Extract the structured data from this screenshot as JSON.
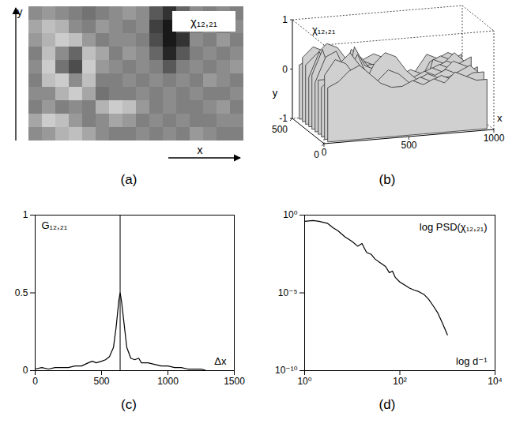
{
  "chart_data": [
    {
      "type": "heatmap",
      "caption": "(a)",
      "zlabel": "χ₁₂,₂₁",
      "xlabel": "x",
      "ylabel": "y",
      "tick_labels": false,
      "clim": [
        -1,
        1
      ],
      "cells": [
        [
          0.1,
          0.2,
          0.1,
          0.0,
          -0.1,
          0.0,
          0.1,
          0.2,
          0.1,
          -0.3,
          -0.6,
          -0.2,
          0.1,
          0.0,
          0.1,
          0.0
        ],
        [
          0.3,
          0.5,
          0.4,
          0.1,
          0.0,
          0.2,
          0.1,
          0.0,
          0.1,
          -0.5,
          -0.8,
          -0.4,
          0.0,
          0.1,
          0.0,
          0.1
        ],
        [
          0.2,
          0.4,
          0.6,
          0.5,
          0.2,
          0.0,
          0.1,
          0.1,
          0.0,
          -0.4,
          -0.8,
          -0.6,
          0.1,
          0.0,
          0.2,
          0.0
        ],
        [
          0.0,
          0.5,
          0.1,
          -0.2,
          0.5,
          0.3,
          0.0,
          0.2,
          0.1,
          -0.2,
          -0.7,
          -0.3,
          0.0,
          0.1,
          0.0,
          0.1
        ],
        [
          0.1,
          0.6,
          -0.1,
          -0.4,
          0.6,
          0.2,
          0.1,
          0.0,
          0.1,
          0.0,
          -0.3,
          0.0,
          0.1,
          0.0,
          0.1,
          0.2
        ],
        [
          0.0,
          0.5,
          0.6,
          0.1,
          0.5,
          0.0,
          0.0,
          0.1,
          0.0,
          0.1,
          0.0,
          0.1,
          0.0,
          0.2,
          0.1,
          0.0
        ],
        [
          0.1,
          0.1,
          0.4,
          0.6,
          0.3,
          -0.1,
          0.0,
          0.0,
          0.1,
          0.0,
          0.1,
          0.0,
          0.1,
          0.0,
          0.0,
          0.1
        ],
        [
          0.0,
          0.2,
          0.0,
          0.1,
          0.0,
          0.4,
          0.6,
          0.5,
          0.2,
          0.0,
          0.1,
          0.0,
          0.0,
          0.1,
          0.2,
          0.0
        ],
        [
          0.3,
          0.6,
          0.5,
          0.2,
          0.0,
          0.1,
          0.3,
          0.2,
          0.0,
          0.1,
          0.0,
          0.1,
          0.0,
          0.0,
          0.1,
          0.1
        ],
        [
          0.1,
          0.2,
          0.4,
          0.5,
          0.3,
          0.1,
          0.0,
          0.0,
          0.1,
          0.0,
          0.1,
          0.0,
          0.2,
          0.1,
          0.0,
          0.0
        ]
      ]
    },
    {
      "type": "surface",
      "caption": "(b)",
      "zlabel": "χ₁₂,₂₁",
      "xlabel": "x",
      "ylabel": "y",
      "xlim": [
        0,
        1000
      ],
      "xticks": [
        0,
        500,
        1000
      ],
      "ylim": [
        0,
        500
      ],
      "yticks": [
        0,
        500
      ],
      "zlim": [
        -1,
        1
      ],
      "zticks": [
        -1,
        0,
        1
      ],
      "cells": [
        [
          0.1,
          0.2,
          0.1,
          0.0,
          -0.1,
          0.0,
          0.1,
          0.2,
          0.1,
          -0.3,
          -0.6,
          -0.2,
          0.1,
          0.0,
          0.1,
          0.0
        ],
        [
          0.3,
          0.5,
          0.4,
          0.1,
          0.0,
          0.2,
          0.1,
          0.0,
          0.1,
          -0.5,
          -0.8,
          -0.4,
          0.0,
          0.1,
          0.0,
          0.1
        ],
        [
          0.2,
          0.4,
          0.6,
          0.5,
          0.2,
          0.0,
          0.1,
          0.1,
          0.0,
          -0.4,
          -0.8,
          -0.6,
          0.1,
          0.0,
          0.2,
          0.0
        ],
        [
          0.0,
          0.5,
          0.1,
          -0.2,
          0.5,
          0.3,
          0.0,
          0.2,
          0.1,
          -0.2,
          -0.7,
          -0.3,
          0.0,
          0.1,
          0.0,
          0.1
        ],
        [
          0.1,
          0.6,
          -0.1,
          -0.4,
          0.6,
          0.2,
          0.1,
          0.0,
          0.1,
          0.0,
          -0.3,
          0.0,
          0.1,
          0.0,
          0.1,
          0.2
        ],
        [
          0.0,
          0.5,
          0.6,
          0.1,
          0.5,
          0.0,
          0.0,
          0.1,
          0.0,
          0.1,
          0.0,
          0.1,
          0.0,
          0.2,
          0.1,
          0.0
        ],
        [
          0.1,
          0.1,
          0.4,
          0.6,
          0.3,
          -0.1,
          0.0,
          0.0,
          0.1,
          0.0,
          0.1,
          0.0,
          0.1,
          0.0,
          0.0,
          0.1
        ],
        [
          0.0,
          0.2,
          0.0,
          0.1,
          0.0,
          0.4,
          0.6,
          0.5,
          0.2,
          0.0,
          0.1,
          0.0,
          0.0,
          0.1,
          0.2,
          0.0
        ],
        [
          0.3,
          0.6,
          0.5,
          0.2,
          0.0,
          0.1,
          0.3,
          0.2,
          0.0,
          0.1,
          0.0,
          0.1,
          0.0,
          0.0,
          0.1,
          0.1
        ],
        [
          0.1,
          0.2,
          0.4,
          0.5,
          0.3,
          0.1,
          0.0,
          0.0,
          0.1,
          0.0,
          0.1,
          0.0,
          0.2,
          0.1,
          0.0,
          0.0
        ]
      ]
    },
    {
      "type": "line",
      "caption": "(c)",
      "ylabel": "G₁₂,₂₁",
      "xlabel": "Δx",
      "color": "#000000",
      "x": [
        0,
        50,
        100,
        150,
        200,
        250,
        300,
        350,
        400,
        430,
        460,
        500,
        530,
        560,
        590,
        610,
        630,
        640,
        650,
        670,
        690,
        720,
        750,
        780,
        800,
        850,
        900,
        950,
        1000,
        1050,
        1100,
        1150,
        1200,
        1250,
        1290
      ],
      "values": [
        0.01,
        0.02,
        0.01,
        0.02,
        0.02,
        0.02,
        0.03,
        0.03,
        0.05,
        0.06,
        0.05,
        0.06,
        0.07,
        0.09,
        0.15,
        0.28,
        0.45,
        0.5,
        0.45,
        0.3,
        0.15,
        0.08,
        0.07,
        0.08,
        0.05,
        0.05,
        0.04,
        0.03,
        0.03,
        0.02,
        0.02,
        0.01,
        0.01,
        0.01,
        0
      ],
      "vline": 640,
      "xlim": [
        0,
        1500
      ],
      "xticks": [
        0,
        500,
        1000,
        1500
      ],
      "ylim": [
        0,
        1
      ],
      "yticks": [
        0,
        0.5,
        1
      ]
    },
    {
      "type": "line",
      "caption": "(d)",
      "log": true,
      "ylabel": "log PSD(χ₁₂,₂₁)",
      "xlabel": "log d⁻¹",
      "color": "#000000",
      "x": [
        1,
        1.5,
        2,
        3,
        4,
        5,
        7,
        10,
        13,
        16,
        20,
        25,
        30,
        40,
        50,
        60,
        70,
        80,
        100,
        130,
        160,
        200,
        250,
        320,
        400,
        500,
        630,
        800,
        1000
      ],
      "values": [
        0.4,
        0.45,
        0.4,
        0.3,
        0.15,
        0.1,
        0.04,
        0.02,
        0.01,
        0.015,
        0.004,
        0.003,
        0.0015,
        0.0008,
        0.0005,
        0.0002,
        0.00025,
        0.0001,
        5e-05,
        3e-05,
        2e-05,
        1.5e-05,
        1.2e-05,
        8e-06,
        4e-06,
        1.5e-06,
        5e-07,
        1e-07,
        2e-08
      ],
      "xlim": [
        1,
        10000
      ],
      "xticks": [
        {
          "value": 1,
          "label": "10⁰"
        },
        {
          "value": 100,
          "label": "10²"
        },
        {
          "value": 10000,
          "label": "10⁴"
        }
      ],
      "ylim": [
        1e-10,
        1
      ],
      "yticks": [
        {
          "value": 1e-10,
          "label": "10⁻¹⁰"
        },
        {
          "value": 1e-05,
          "label": "10⁻⁵"
        },
        {
          "value": 1,
          "label": "10⁰"
        }
      ]
    }
  ]
}
